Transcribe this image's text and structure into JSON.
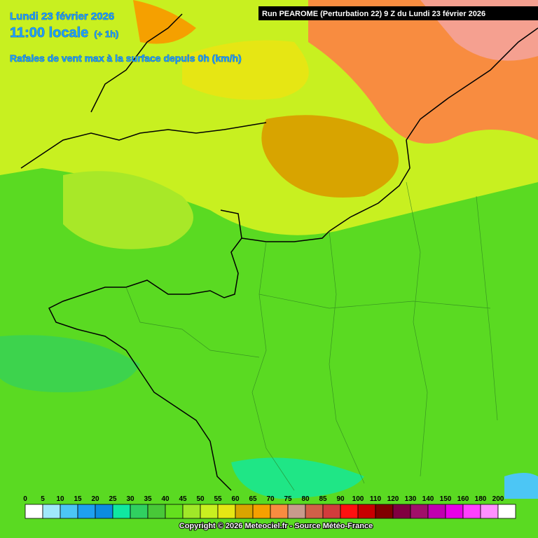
{
  "header": {
    "date": "Lundi 23 février 2026",
    "time": "11:00 locale",
    "offset": "(+ 1h)",
    "parameter": "Rafales de vent max à la surface depuis 0h (km/h)",
    "run": "Run PEAROME (Perturbation 22) 9 Z du Lundi 23 février 2026"
  },
  "legend": {
    "items": [
      {
        "value": 0,
        "color": "#ffffff"
      },
      {
        "value": 5,
        "color": "#a0e8fa"
      },
      {
        "value": 10,
        "color": "#4cc6f5"
      },
      {
        "value": 15,
        "color": "#1ea0f0"
      },
      {
        "value": 20,
        "color": "#0c8ce0"
      },
      {
        "value": 25,
        "color": "#10e8a0"
      },
      {
        "value": 30,
        "color": "#30d060"
      },
      {
        "value": 35,
        "color": "#48c838"
      },
      {
        "value": 40,
        "color": "#64e01e"
      },
      {
        "value": 45,
        "color": "#a0e828"
      },
      {
        "value": 50,
        "color": "#c8f020"
      },
      {
        "value": 55,
        "color": "#e6e614"
      },
      {
        "value": 60,
        "color": "#d8a400"
      },
      {
        "value": 65,
        "color": "#f5a000"
      },
      {
        "value": 70,
        "color": "#f88c40"
      },
      {
        "value": 75,
        "color": "#c89a8c"
      },
      {
        "value": 80,
        "color": "#d06048"
      },
      {
        "value": 85,
        "color": "#d23c3c"
      },
      {
        "value": 90,
        "color": "#ff1010"
      },
      {
        "value": 100,
        "color": "#c80000"
      },
      {
        "value": 110,
        "color": "#800000"
      },
      {
        "value": 120,
        "color": "#800040"
      },
      {
        "value": 130,
        "color": "#a0106a"
      },
      {
        "value": 140,
        "color": "#c000b0"
      },
      {
        "value": 150,
        "color": "#e800e8"
      },
      {
        "value": 160,
        "color": "#ff40ff"
      },
      {
        "value": 180,
        "color": "#ff90ff"
      },
      {
        "value": 200,
        "color": "#ffffff"
      }
    ]
  },
  "footer": {
    "copyright": "Copyright © 2026 Meteociel.fr - Source Météo-France"
  }
}
